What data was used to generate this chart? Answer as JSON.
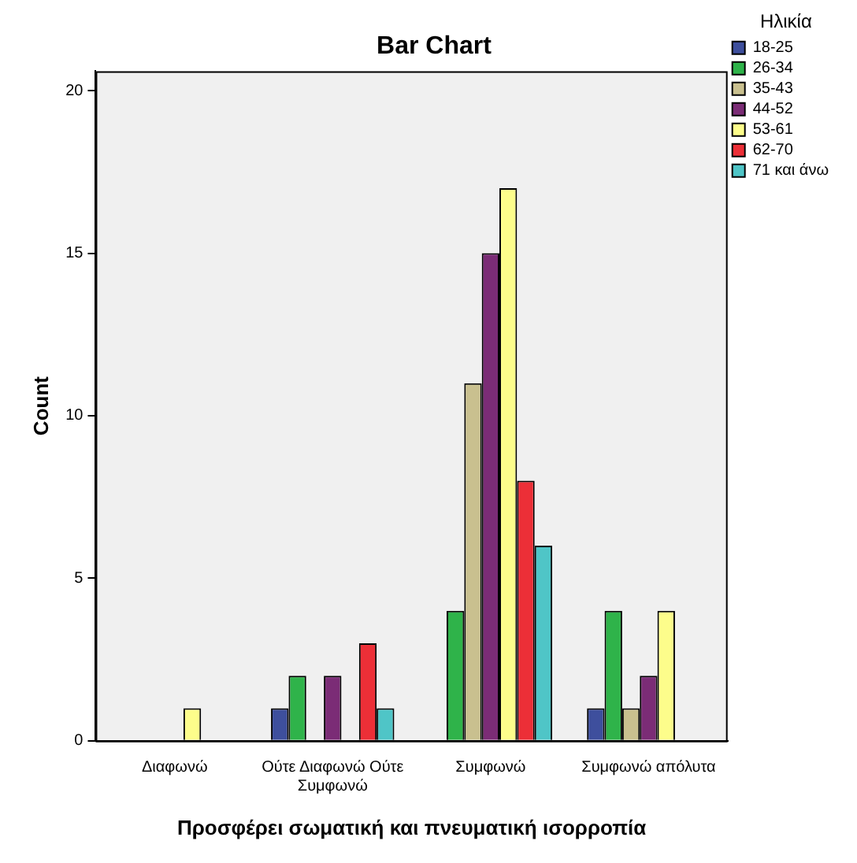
{
  "chart_data": {
    "type": "bar",
    "title": "Bar Chart",
    "xlabel": "Προσφέρει σωματική και πνευματική ισορροπία",
    "ylabel": "Count",
    "legend_title": "Ηλικία",
    "legend": "top right",
    "grid": false,
    "categories": [
      "Διαφωνώ",
      "Ούτε Διαφωνώ Ούτε Συμφωνώ",
      "Συμφωνώ",
      "Συμφωνώ απόλυτα"
    ],
    "ylim": [
      0,
      20.6
    ],
    "yticks": [
      0,
      5,
      10,
      15,
      20
    ],
    "series": [
      {
        "name": "18-25",
        "color": "#3e4f9d",
        "values": [
          0,
          1,
          0,
          1
        ]
      },
      {
        "name": "26-34",
        "color": "#2fb34a",
        "values": [
          0,
          2,
          4,
          4
        ]
      },
      {
        "name": "35-43",
        "color": "#c9c08f",
        "values": [
          0,
          0,
          11,
          1
        ]
      },
      {
        "name": "44-52",
        "color": "#7b2c76",
        "values": [
          0,
          2,
          15,
          2
        ]
      },
      {
        "name": "53-61",
        "color": "#fdfd8b",
        "values": [
          1,
          0,
          17,
          4
        ]
      },
      {
        "name": "62-70",
        "color": "#ec2f37",
        "values": [
          0,
          3,
          8,
          0
        ]
      },
      {
        "name": "71 και άνω",
        "color": "#4fc5c7",
        "values": [
          0,
          1,
          6,
          0
        ]
      }
    ]
  }
}
